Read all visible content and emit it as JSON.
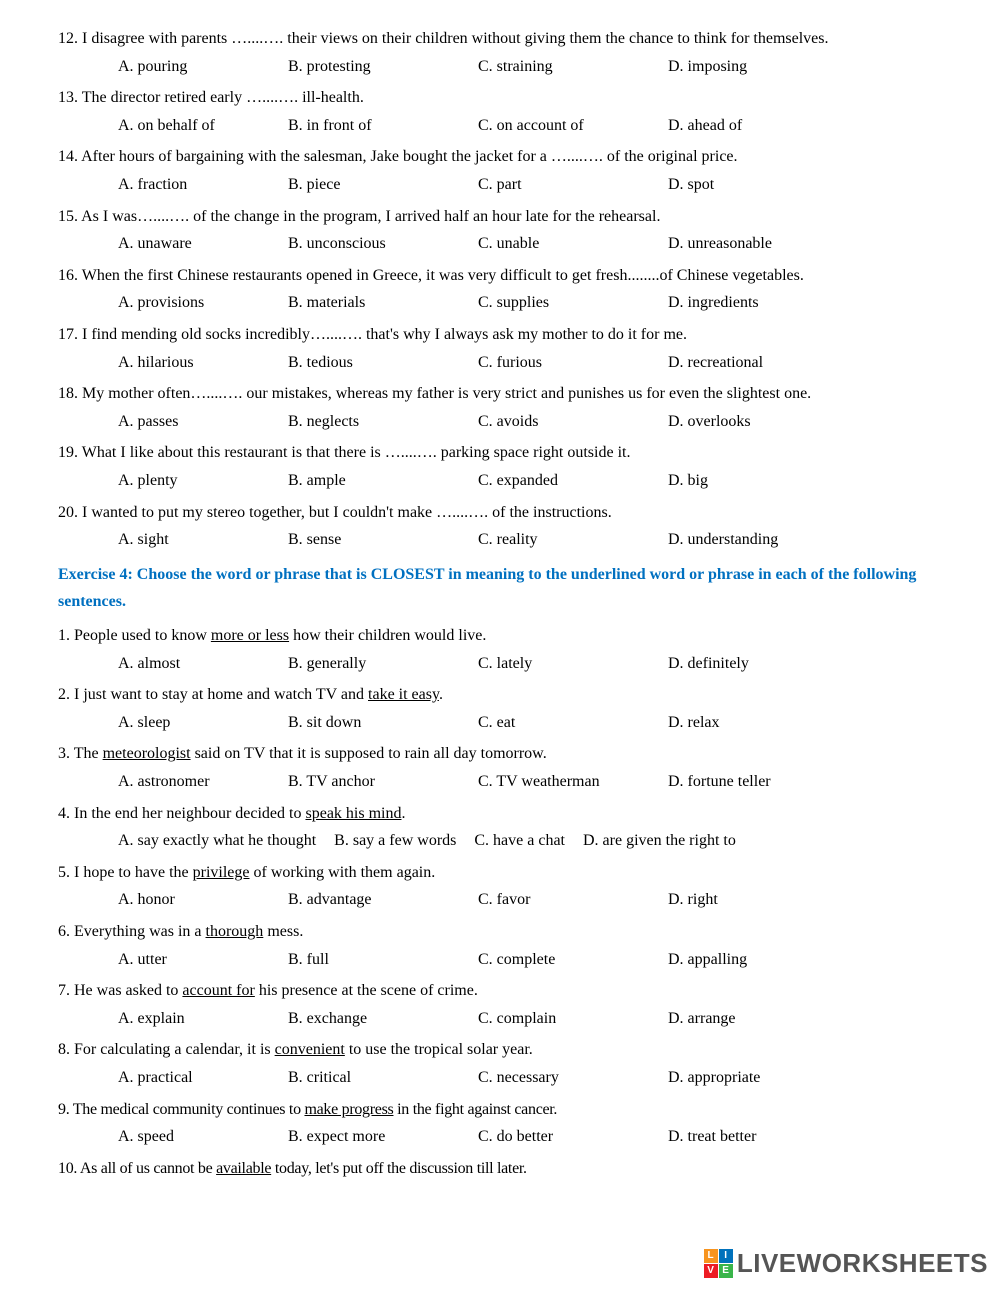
{
  "ex3": {
    "q12": {
      "text": "12. I disagree with parents …....….  their views on their children without giving them the chance to think for themselves.",
      "a": "A. pouring",
      "b": "B. protesting",
      "c": "C. straining",
      "d": "D. imposing"
    },
    "q13": {
      "text": "13. The director retired early …....….  ill-health.",
      "a": "A. on behalf of",
      "b": "B. in front of",
      "c": "C. on account of",
      "d": "D. ahead of"
    },
    "q14": {
      "text": "14. After hours of bargaining with the salesman, Jake bought the jacket for a …....….  of the original price.",
      "a": "A. fraction",
      "b": "B. piece",
      "c": "C. part",
      "d": "D. spot"
    },
    "q15": {
      "text": "15. As I was…....….  of the change in the program, I arrived half an hour late for the rehearsal.",
      "a": "A. unaware",
      "b": "B. unconscious",
      "c": "C. unable",
      "d": "D. unreasonable"
    },
    "q16": {
      "text": "16. When the first Chinese restaurants opened in Greece, it was very difficult to get fresh........of Chinese vegetables.",
      "a": "A. provisions",
      "b": "B. materials",
      "c": "C. supplies",
      "d": "D. ingredients"
    },
    "q17": {
      "text": "17. I find mending old socks incredibly…....….  that's why I always ask my mother to do it for me.",
      "a": "A. hilarious",
      "b": "B. tedious",
      "c": "C. furious",
      "d": "D. recreational"
    },
    "q18": {
      "text": "18. My mother often…....….  our mistakes, whereas my father is very strict and punishes us for even the slightest one.",
      "a": "A. passes",
      "b": "B. neglects",
      "c": "C. avoids",
      "d": "D. overlooks"
    },
    "q19": {
      "text": "19. What I like about this restaurant is that there is …....….  parking space right outside it.",
      "a": "A. plenty",
      "b": "B. ample",
      "c": "C. expanded",
      "d": "D. big"
    },
    "q20": {
      "text": "20. I wanted to put my stereo together, but I couldn't make …....….  of the instructions.",
      "a": "A. sight",
      "b": "B. sense",
      "c": "C. reality",
      "d": "D. understanding"
    }
  },
  "instruction4": "Exercise 4: Choose the word or phrase that is CLOSEST in meaning to the underlined word or phrase in each of the following sentences.",
  "ex4": {
    "q1": {
      "pre": "1. People used to know ",
      "u": "more or less",
      "post": " how their children would live.",
      "a": "A. almost",
      "b": "B. generally",
      "c": "C. lately",
      "d": "D. definitely"
    },
    "q2": {
      "pre": "2. I just want to stay at home and watch TV and ",
      "u": "take it easy",
      "post": ".",
      "a": "A. sleep",
      "b": "B. sit down",
      "c": "C. eat",
      "d": "D. relax"
    },
    "q3": {
      "pre": "3. The ",
      "u": "meteorologist",
      "post": " said on TV that it is supposed to rain all day tomorrow.",
      "a": "A. astronomer",
      "b": "B. TV anchor",
      "c": "C. TV weatherman",
      "d": "D. fortune teller"
    },
    "q4": {
      "pre": "4.  In the end her neighbour decided to ",
      "u": "speak his mind",
      "post": ".",
      "a": "A. say exactly what he thought",
      "b": "B. say a few words",
      "c": "C. have a chat",
      "d": "D. are given the right to"
    },
    "q5": {
      "pre": "5. I hope to have the ",
      "u": "privilege",
      "post": " of working with them again.",
      "a": "A. honor",
      "b": "B. advantage",
      "c": "C. favor",
      "d": "D. right"
    },
    "q6": {
      "pre": "6. Everything was in a ",
      "u": "thorough",
      "post": " mess.",
      "a": "A. utter",
      "b": "B. full",
      "c": "C. complete",
      "d": "D. appalling"
    },
    "q7": {
      "pre": "7.  He was asked to ",
      "u": "account for",
      "post": " his presence at the scene of crime.",
      "a": "A. explain",
      "b": "B. exchange",
      "c": "C. complain",
      "d": "D. arrange"
    },
    "q8": {
      "pre": "8.  For calculating a calendar, it is ",
      "u": "convenient",
      "post": " to use the tropical solar year.",
      "a": "A. practical",
      "b": "B.  critical",
      "c": "C. necessary",
      "d": "D. appropriate"
    },
    "q9": {
      "pre": "9.  The medical community continues to ",
      "u": "make progress",
      "post": " in the fight against cancer.",
      "a": "A. speed",
      "b": "B. expect more",
      "c": "C. do better",
      "d": "D. treat better"
    },
    "q10": {
      "pre": "10.  As all of us cannot be ",
      "u": "available",
      "post": " today, let's put off the discussion till later."
    }
  },
  "logo": {
    "text": "LIVEWORKSHEETS",
    "sq": {
      "l": "L",
      "i": "I",
      "v": "V",
      "e": "E"
    },
    "colors": {
      "l": "#f7941e",
      "i": "#0072bc",
      "v": "#ed1c24",
      "e": "#39b54a"
    }
  }
}
